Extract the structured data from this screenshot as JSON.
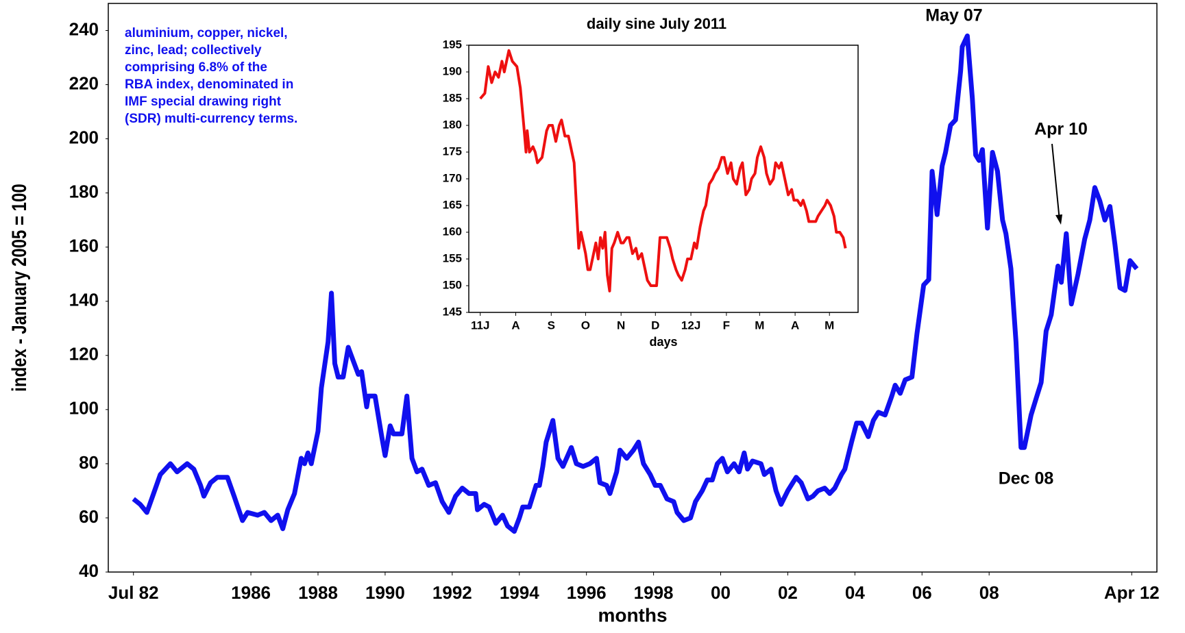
{
  "chart_data": [
    {
      "type": "line",
      "y_label": "index - January 2005 = 100",
      "x_label": "months",
      "annotations": [
        "May 07",
        "Apr 10",
        "Dec 08"
      ],
      "text_box": [
        "aluminium, copper, nickel,",
        "zinc, lead; collectively",
        "comprising 6.8% of the",
        "RBA index, denominated in",
        "IMF special drawing right",
        "(SDR) multi-currency terms."
      ],
      "text_box_color": "#1010ee",
      "xlim": [
        1981.75,
        2013
      ],
      "xticks": [
        {
          "value": 1982.5,
          "label": "Jul 82"
        },
        1986,
        1988,
        1990,
        1992,
        1994,
        1996,
        1998,
        {
          "value": 2000,
          "label": "00"
        },
        {
          "value": 2002,
          "label": "02"
        },
        {
          "value": 2004,
          "label": "04"
        },
        {
          "value": 2006,
          "label": "06"
        },
        {
          "value": 2008,
          "label": "08"
        },
        {
          "value": 2012.25,
          "label": "Apr 12"
        }
      ],
      "ylim": [
        40,
        250
      ],
      "yticks": [
        40,
        60,
        80,
        100,
        120,
        140,
        160,
        180,
        200,
        220,
        240
      ],
      "series": [
        {
          "color": "#1010ee",
          "x": [
            1982.5,
            1982.7,
            1982.9,
            1983.1,
            1983.3,
            1983.6,
            1983.8,
            1984.1,
            1984.3,
            1984.5,
            1984.6,
            1984.8,
            1985.0,
            1985.3,
            1985.5,
            1985.75,
            1985.9,
            1986.2,
            1986.4,
            1986.6,
            1986.8,
            1986.95,
            1987.1,
            1987.3,
            1987.5,
            1987.6,
            1987.7,
            1987.8,
            1988.0,
            1988.1,
            1988.3,
            1988.4,
            1988.5,
            1988.6,
            1988.75,
            1988.9,
            1989.05,
            1989.2,
            1989.3,
            1989.45,
            1989.5,
            1989.7,
            1989.9,
            1990.0,
            1990.15,
            1990.25,
            1990.5,
            1990.65,
            1990.8,
            1990.95,
            1991.1,
            1991.3,
            1991.5,
            1991.7,
            1991.9,
            1992.1,
            1992.3,
            1992.5,
            1992.7,
            1992.75,
            1992.95,
            1993.1,
            1993.3,
            1993.5,
            1993.65,
            1993.85,
            1994.0,
            1994.1,
            1994.3,
            1994.5,
            1994.6,
            1994.7,
            1994.8,
            1995.0,
            1995.15,
            1995.3,
            1995.55,
            1995.7,
            1995.9,
            1996.1,
            1996.3,
            1996.4,
            1996.6,
            1996.7,
            1996.9,
            1997.0,
            1997.2,
            1997.4,
            1997.55,
            1997.7,
            1997.9,
            1998.05,
            1998.2,
            1998.4,
            1998.6,
            1998.7,
            1998.9,
            1999.1,
            1999.25,
            1999.45,
            1999.6,
            1999.75,
            1999.9,
            2000.05,
            2000.2,
            2000.4,
            2000.55,
            2000.7,
            2000.8,
            2000.95,
            2001.2,
            2001.3,
            2001.5,
            2001.65,
            2001.8,
            2002.0,
            2002.1,
            2002.25,
            2002.4,
            2002.6,
            2002.75,
            2002.9,
            2003.1,
            2003.25,
            2003.4,
            2003.6,
            2003.7,
            2003.9,
            2004.05,
            2004.2,
            2004.4,
            2004.55,
            2004.7,
            2004.9,
            2005.1,
            2005.2,
            2005.35,
            2005.5,
            2005.7,
            2005.85,
            2006.05,
            2006.2,
            2006.3,
            2006.45,
            2006.6,
            2006.7,
            2006.85,
            2007.0,
            2007.15,
            2007.2,
            2007.35,
            2007.5,
            2007.6,
            2007.7,
            2007.8,
            2007.95,
            2008.1,
            2008.25,
            2008.4,
            2008.5,
            2008.65,
            2008.8,
            2008.95,
            2009.05,
            2009.25,
            2009.4,
            2009.55,
            2009.7,
            2009.85,
            2010.05,
            2010.15,
            2010.3,
            2010.45,
            2010.65,
            2010.85,
            2011.0,
            2011.15,
            2011.3,
            2011.45,
            2011.6,
            2011.75,
            2011.9,
            2012.05,
            2012.2,
            2012.4
          ],
          "values": [
            67,
            65,
            62,
            69,
            76,
            80,
            77,
            80,
            78,
            72,
            68,
            73,
            75,
            75,
            68,
            59,
            62,
            61,
            62,
            59,
            61,
            56,
            63,
            69,
            82,
            80,
            84,
            80,
            92,
            108,
            125,
            143,
            117,
            112,
            112,
            123,
            118,
            113,
            114,
            101,
            105,
            105,
            90,
            83,
            94,
            91,
            91,
            105,
            82,
            77,
            78,
            72,
            73,
            66,
            62,
            68,
            71,
            69,
            69,
            63,
            65,
            64,
            58,
            61,
            57,
            55,
            60,
            64,
            64,
            72,
            72,
            79,
            88,
            96,
            82,
            79,
            86,
            80,
            79,
            80,
            82,
            73,
            72,
            69,
            77,
            85,
            82,
            85,
            88,
            80,
            76,
            72,
            72,
            67,
            66,
            62,
            59,
            60,
            66,
            70,
            74,
            74,
            80,
            82,
            77,
            80,
            77,
            84,
            78,
            81,
            80,
            76,
            78,
            70,
            65,
            70,
            72,
            75,
            73,
            67,
            68,
            70,
            71,
            69,
            71,
            76,
            78,
            88,
            95,
            95,
            90,
            96,
            99,
            98,
            105,
            109,
            106,
            111,
            112,
            128,
            146,
            148,
            188,
            172,
            190,
            195,
            205,
            207,
            225,
            234,
            238,
            215,
            194,
            192,
            196,
            167,
            195,
            188,
            170,
            165,
            152,
            125,
            86,
            86,
            98,
            104,
            110,
            129,
            135,
            153,
            147,
            165,
            139,
            150,
            163,
            170,
            182,
            177,
            170,
            175,
            161,
            145,
            144,
            155,
            152
          ]
        }
      ]
    },
    {
      "type": "line",
      "title": "daily sine July 2011",
      "x_label": "days",
      "xlim": [
        -10,
        330
      ],
      "xticks": [
        {
          "value": 0,
          "label": "11J"
        },
        {
          "value": 31,
          "label": "A"
        },
        {
          "value": 62,
          "label": "S"
        },
        {
          "value": 92,
          "label": "O"
        },
        {
          "value": 123,
          "label": "N"
        },
        {
          "value": 153,
          "label": "D"
        },
        {
          "value": 184,
          "label": "12J"
        },
        {
          "value": 215,
          "label": "F"
        },
        {
          "value": 244,
          "label": "M"
        },
        {
          "value": 275,
          "label": "A"
        },
        {
          "value": 305,
          "label": "M"
        }
      ],
      "ylim": [
        145,
        195
      ],
      "yticks": [
        145,
        150,
        155,
        160,
        165,
        170,
        175,
        180,
        185,
        190,
        195
      ],
      "series": [
        {
          "color": "#ee1010",
          "x": [
            0,
            4,
            7,
            10,
            13,
            16,
            19,
            21,
            23,
            25,
            28,
            32,
            35,
            38,
            40,
            41,
            43,
            46,
            48,
            50,
            54,
            58,
            60,
            63,
            66,
            69,
            71,
            74,
            77,
            79,
            82,
            84,
            86,
            88,
            90,
            92,
            94,
            96,
            99,
            101,
            103,
            105,
            107,
            109,
            111,
            113,
            115,
            117,
            120,
            123,
            125,
            128,
            130,
            133,
            136,
            138,
            141,
            144,
            146,
            149,
            152,
            154,
            157,
            160,
            163,
            166,
            168,
            171,
            173,
            176,
            179,
            181,
            184,
            187,
            189,
            192,
            195,
            197,
            200,
            203,
            205,
            208,
            211,
            213,
            216,
            219,
            221,
            224,
            227,
            229,
            232,
            235,
            237,
            240,
            242,
            245,
            248,
            250,
            253,
            256,
            258,
            261,
            263,
            266,
            269,
            272,
            274,
            277,
            280,
            282,
            285,
            287,
            290,
            293,
            295,
            298,
            301,
            303,
            306,
            309,
            311,
            314,
            317,
            319
          ],
          "values": [
            185,
            186,
            191,
            188,
            190,
            189,
            192,
            190,
            192,
            194,
            192,
            191,
            187,
            180,
            175,
            179,
            175,
            176,
            175,
            173,
            174,
            179,
            180,
            180,
            177,
            180,
            181,
            178,
            178,
            176,
            173,
            165,
            157,
            160,
            158,
            156,
            153,
            153,
            156,
            158,
            155,
            159,
            157,
            160,
            152,
            149,
            157,
            158,
            160,
            158,
            158,
            159,
            159,
            156,
            157,
            155,
            156,
            153,
            151,
            150,
            150,
            150,
            159,
            159,
            159,
            157,
            155,
            153,
            152,
            151,
            153,
            155,
            155,
            158,
            157,
            161,
            164,
            165,
            169,
            170,
            171,
            172,
            174,
            174,
            171,
            173,
            170,
            169,
            172,
            173,
            167,
            168,
            170,
            171,
            174,
            176,
            174,
            171,
            169,
            170,
            173,
            172,
            173,
            170,
            167,
            168,
            166,
            166,
            165,
            166,
            164,
            162,
            162,
            162,
            163,
            164,
            165,
            166,
            165,
            163,
            160,
            160,
            159,
            157
          ]
        }
      ]
    }
  ]
}
